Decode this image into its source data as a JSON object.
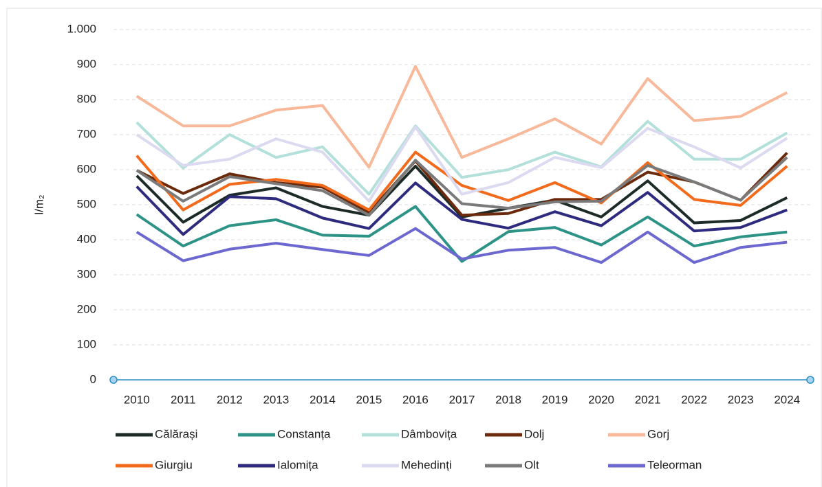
{
  "chart_data": {
    "type": "line",
    "y_label": "l/m₂",
    "categories": [
      "2010",
      "2011",
      "2012",
      "2013",
      "2014",
      "2015",
      "2016",
      "2017",
      "2018",
      "2019",
      "2020",
      "2021",
      "2022",
      "2023",
      "2024"
    ],
    "ylim": [
      0,
      1000
    ],
    "yticks": [
      0,
      100,
      200,
      300,
      400,
      500,
      600,
      700,
      800,
      900,
      {
        "value": 1000,
        "label": "1.000"
      }
    ],
    "grid": true,
    "series": [
      {
        "name": "Călărași",
        "color": "#1c2b27",
        "values": [
          583,
          450,
          527,
          548,
          495,
          470,
          610,
          465,
          490,
          513,
          465,
          568,
          448,
          455,
          520
        ]
      },
      {
        "name": "Constanța",
        "color": "#2e9387",
        "values": [
          472,
          382,
          440,
          457,
          413,
          410,
          495,
          338,
          423,
          435,
          385,
          465,
          382,
          408,
          422
        ]
      },
      {
        "name": "Dâmbovița",
        "color": "#b3e0da",
        "values": [
          735,
          605,
          700,
          635,
          665,
          530,
          725,
          578,
          600,
          650,
          608,
          738,
          630,
          630,
          705
        ]
      },
      {
        "name": "Dolj",
        "color": "#6b2a0c",
        "values": [
          598,
          532,
          588,
          563,
          550,
          478,
          625,
          470,
          475,
          515,
          515,
          593,
          565,
          513,
          648
        ]
      },
      {
        "name": "Gorj",
        "color": "#f8b89a",
        "values": [
          810,
          725,
          725,
          770,
          783,
          607,
          895,
          635,
          688,
          745,
          673,
          860,
          740,
          752,
          820
        ]
      },
      {
        "name": "Giurgiu",
        "color": "#f26b1d",
        "values": [
          640,
          485,
          558,
          572,
          555,
          485,
          650,
          555,
          512,
          563,
          505,
          620,
          515,
          498,
          610
        ]
      },
      {
        "name": "Ialomița",
        "color": "#2e2a7e",
        "values": [
          552,
          415,
          523,
          517,
          462,
          432,
          562,
          458,
          433,
          480,
          440,
          535,
          425,
          435,
          485
        ]
      },
      {
        "name": "Mehedinți",
        "color": "#dcdaf0",
        "values": [
          700,
          612,
          630,
          688,
          650,
          510,
          722,
          530,
          563,
          635,
          606,
          718,
          665,
          605,
          690
        ]
      },
      {
        "name": "Olt",
        "color": "#7a7a7a",
        "values": [
          598,
          510,
          580,
          560,
          540,
          470,
          627,
          503,
          490,
          508,
          510,
          612,
          565,
          513,
          635
        ]
      },
      {
        "name": "Teleorman",
        "color": "#6c68d0",
        "values": [
          422,
          340,
          373,
          390,
          372,
          355,
          432,
          345,
          370,
          378,
          335,
          422,
          335,
          378,
          393
        ]
      }
    ]
  }
}
